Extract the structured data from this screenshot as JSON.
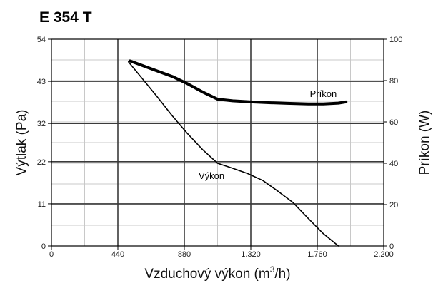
{
  "chart_data": {
    "type": "line",
    "title": "E 354 T",
    "xlabel": "Vzduchový výkon (m",
    "xlabel_sup": "3",
    "xlabel_tail": "/h)",
    "ylabel": "Výtlak (Pa)",
    "y2label": "Príkon (W)",
    "xlim": [
      0,
      2200
    ],
    "ylim": [
      0,
      54
    ],
    "y2lim": [
      0,
      100
    ],
    "x_ticks": [
      0,
      440,
      880,
      1320,
      1760,
      2200
    ],
    "x_tick_labels": [
      "0",
      "440",
      "880",
      "1.320",
      "1.760",
      "2.200"
    ],
    "y_ticks": [
      0,
      11,
      22,
      32,
      43,
      54
    ],
    "y_tick_labels": [
      "0",
      "11",
      "22",
      "32",
      "43",
      "54"
    ],
    "y2_ticks": [
      0,
      20,
      40,
      60,
      80,
      100
    ],
    "y2_tick_labels": [
      "0",
      "20",
      "40",
      "60",
      "80",
      "100"
    ],
    "x_minor_step": 220,
    "y_minor_step": 5.4,
    "grid": true,
    "series": [
      {
        "name": "Výkon",
        "axis": "left",
        "points": [
          [
            510,
            48.1
          ],
          [
            600,
            43.8
          ],
          [
            700,
            39.0
          ],
          [
            800,
            34.0
          ],
          [
            900,
            29.4
          ],
          [
            1000,
            25.2
          ],
          [
            1100,
            21.6
          ],
          [
            1200,
            20.3
          ],
          [
            1300,
            18.9
          ],
          [
            1400,
            17.1
          ],
          [
            1500,
            14.3
          ],
          [
            1600,
            11.3
          ],
          [
            1700,
            7.2
          ],
          [
            1800,
            3.2
          ],
          [
            1900,
            0
          ]
        ],
        "label_at": [
          1060,
          17.5
        ],
        "stroke_width": 1.6
      },
      {
        "name": "Príkon",
        "axis": "right",
        "points": [
          [
            520,
            89.5
          ],
          [
            650,
            86.0
          ],
          [
            800,
            82.0
          ],
          [
            900,
            78.5
          ],
          [
            1000,
            74.5
          ],
          [
            1100,
            71.0
          ],
          [
            1200,
            70.2
          ],
          [
            1320,
            69.7
          ],
          [
            1440,
            69.3
          ],
          [
            1560,
            69.0
          ],
          [
            1700,
            68.7
          ],
          [
            1800,
            68.7
          ],
          [
            1900,
            69.1
          ],
          [
            1950,
            69.7
          ]
        ],
        "label_at": [
          1800,
          72
        ],
        "stroke_width": 4
      }
    ]
  }
}
